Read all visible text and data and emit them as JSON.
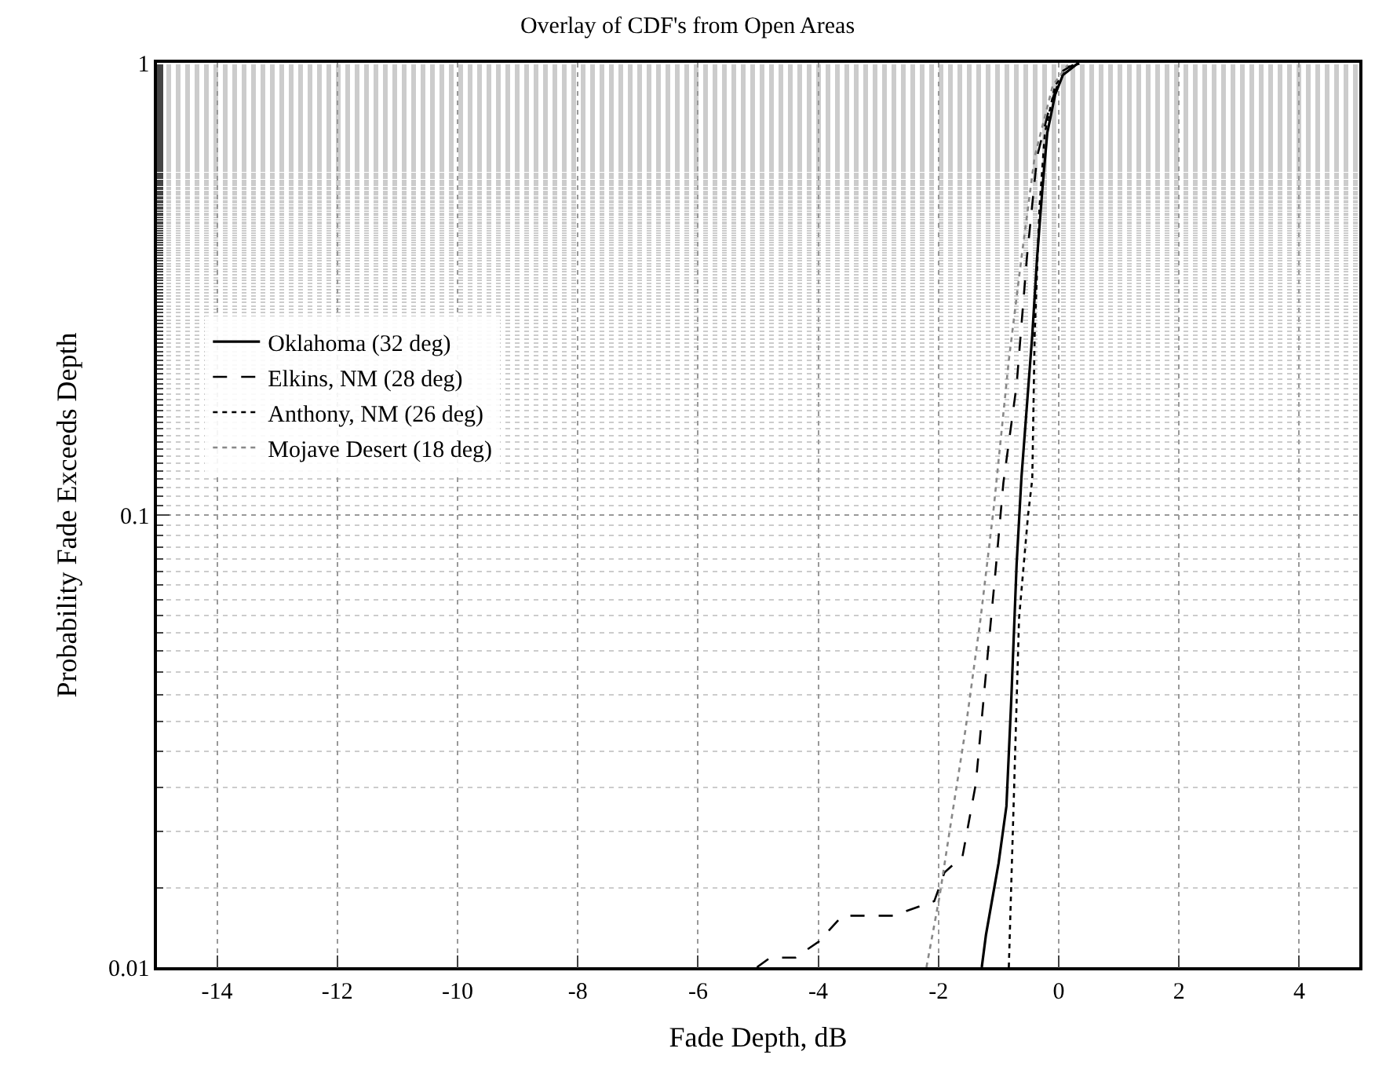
{
  "chart_data": {
    "type": "line",
    "title": "Overlay of CDF's from Open Areas",
    "xlabel": "Fade Depth, dB",
    "ylabel": "Probability Fade Exceeds Depth",
    "log": "y",
    "grid": true,
    "legend": "left",
    "marker": "none",
    "xlim": [
      -15,
      5
    ],
    "xticks": [
      -14,
      -12,
      -10,
      -8,
      -6,
      -4,
      -2,
      0,
      2,
      4
    ],
    "ylim": [
      0.01,
      1
    ],
    "yticks": [
      0.01,
      0.1,
      1
    ],
    "series": [
      {
        "name": "Oklahoma (32 deg)",
        "color": "#000000",
        "line_style": "solid",
        "x": [
          -1.28,
          -1.21,
          -1.0,
          -0.87,
          -0.79,
          -0.7,
          -0.62,
          -0.44,
          -0.36,
          -0.27,
          -0.19,
          -0.06,
          0.07,
          0.33
        ],
        "values": [
          0.01,
          0.0118,
          0.017,
          0.0227,
          0.0388,
          0.078,
          0.121,
          0.25,
          0.37,
          0.53,
          0.7,
          0.85,
          0.94,
          1
        ]
      },
      {
        "name": "Elkins, NM (28 deg)",
        "color": "#000000",
        "line_style": "dashed",
        "x": [
          -5.02,
          -4.8,
          -4.38,
          -3.99,
          -3.6,
          -2.75,
          -2.07,
          -1.9,
          -1.6,
          -1.38,
          -1.21,
          -1.04,
          -0.92,
          -0.7,
          -0.53,
          -0.36,
          -0.15,
          0.07,
          0.3
        ],
        "values": [
          0.01,
          0.0105,
          0.0105,
          0.0114,
          0.013,
          0.013,
          0.014,
          0.0162,
          0.0176,
          0.0254,
          0.0447,
          0.078,
          0.118,
          0.194,
          0.37,
          0.62,
          0.8,
          0.96,
          1
        ]
      },
      {
        "name": "Anthony, NM (26 deg)",
        "color": "#000000",
        "line_style": "dotted",
        "x": [
          -0.83,
          -0.74,
          -0.66,
          -0.51,
          -0.44,
          -0.4,
          -0.32,
          -0.23,
          -0.06,
          0.15,
          0.41
        ],
        "values": [
          0.01,
          0.0254,
          0.059,
          0.1,
          0.12,
          0.25,
          0.48,
          0.7,
          0.89,
          0.98,
          1
        ]
      },
      {
        "name": "Mojave Desert (18 deg)",
        "color": "#888888",
        "line_style": "dotted",
        "x": [
          -2.2,
          -1.98,
          -1.81,
          -1.55,
          -1.3,
          -1.08,
          -0.83,
          -0.62,
          -0.4,
          -0.1,
          0.15
        ],
        "values": [
          0.01,
          0.0144,
          0.0202,
          0.0336,
          0.059,
          0.104,
          0.22,
          0.37,
          0.62,
          0.89,
          0.99
        ]
      }
    ]
  }
}
